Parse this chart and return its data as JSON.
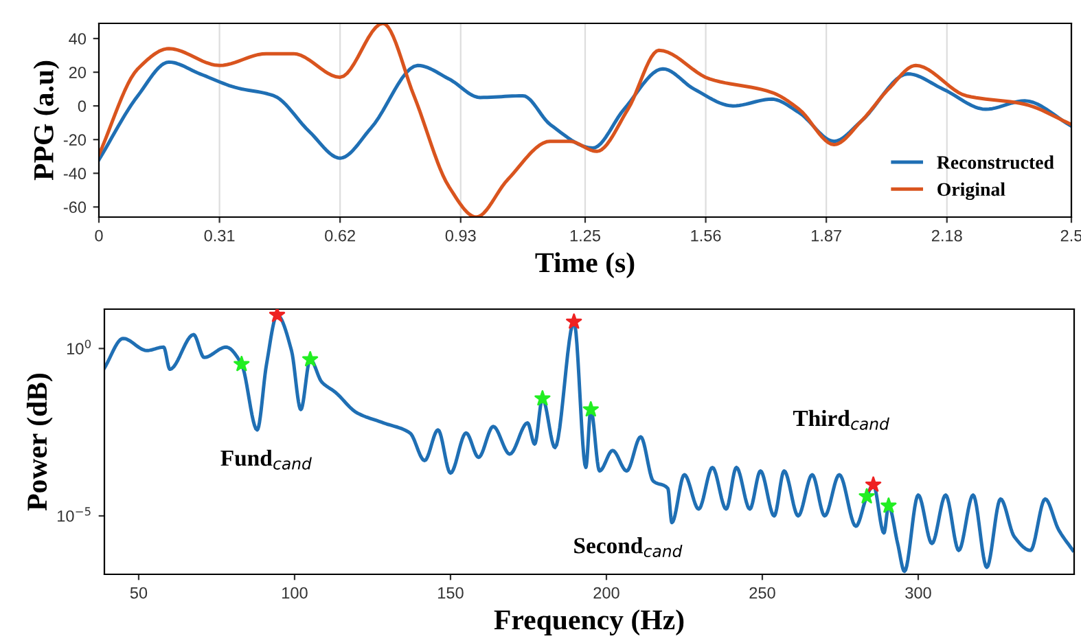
{
  "chart_data": [
    {
      "type": "line",
      "xlabel": "Time (s)",
      "ylabel": "PPG (a.u)",
      "xlim": [
        0,
        2.5
      ],
      "ylim": [
        -66,
        49
      ],
      "xticks": [
        0,
        0.31,
        0.62,
        0.93,
        1.25,
        1.56,
        1.87,
        2.18,
        2.5
      ],
      "yticks": [
        -60,
        -40,
        -20,
        0,
        20,
        40
      ],
      "grid": "x",
      "legend": "bottom right",
      "x": [
        0,
        0.1,
        0.18,
        0.26,
        0.35,
        0.45,
        0.54,
        0.62,
        0.7,
        0.82,
        0.9,
        0.98,
        1.09,
        1.16,
        1.27,
        1.35,
        1.45,
        1.53,
        1.63,
        1.73,
        1.8,
        1.89,
        1.96,
        2.08,
        2.17,
        2.28,
        2.38,
        2.5
      ],
      "series": [
        {
          "name": "Reconstructed",
          "color": "#1f6fb4",
          "values": [
            -32,
            6,
            26,
            19,
            11,
            6,
            -15,
            -31,
            -13,
            24,
            16,
            5,
            6,
            -11,
            -25,
            -2,
            22,
            10,
            0,
            4,
            -4,
            -21,
            -9,
            19,
            10,
            -2,
            3,
            -12
          ]
        },
        {
          "name": "Original",
          "color": "#d9541e",
          "x": [
            0,
            0.1,
            0.18,
            0.31,
            0.43,
            0.5,
            0.62,
            0.73,
            0.81,
            0.9,
            0.97,
            1.05,
            1.16,
            1.21,
            1.28,
            1.36,
            1.44,
            1.57,
            1.73,
            1.8,
            1.89,
            1.96,
            2.03,
            2.1,
            2.23,
            2.38,
            2.5
          ],
          "values": [
            -29,
            22,
            34,
            24,
            31,
            31,
            17,
            49,
            6,
            -48,
            -66,
            -44,
            -21,
            -21,
            -27,
            -2,
            33,
            16,
            8,
            -2,
            -23,
            -9,
            10,
            24,
            6,
            1,
            -11
          ]
        }
      ]
    },
    {
      "type": "line",
      "xlabel": "Frequency (Hz)",
      "ylabel": "Power (dB)",
      "log": "y",
      "xlim": [
        39,
        350
      ],
      "ylim": [
        1.8e-07,
        15
      ],
      "xticks": [
        50,
        100,
        150,
        200,
        250,
        300
      ],
      "yticks": [
        {
          "value": 1,
          "label": "10$^{0}$"
        },
        {
          "value": 1e-05,
          "label": "10$^{−5}$"
        }
      ],
      "grid": false,
      "legend": false,
      "annotations": [
        "Fund$_{cand}$",
        "Second$_{cand}$",
        "Third$_{cand}$"
      ],
      "series": [
        {
          "type": "line",
          "color": "#1f6fb4",
          "x": [
            39,
            45,
            52.6,
            58,
            60,
            67.6,
            71,
            78,
            83,
            88,
            91,
            94.4,
            99,
            102,
            105,
            108.7,
            113,
            120,
            128.5,
            137,
            141.7,
            146,
            150,
            155,
            159,
            163.7,
            169,
            174.7,
            177,
            179.5,
            183.5,
            189.6,
            193.4,
            195,
            197.8,
            202,
            206.5,
            211,
            215,
            219.7,
            221,
            225,
            229.6,
            234,
            238.4,
            241.7,
            246,
            249.4,
            253.8,
            257,
            261.5,
            266,
            270,
            274.7,
            280,
            283.5,
            285.6,
            289,
            290.5,
            293.4,
            295.6,
            300,
            304.4,
            308.8,
            313,
            317.6,
            322,
            326.4,
            330.8,
            336,
            340.7,
            345,
            349.6
          ],
          "values": [
            0.26,
            2.0,
            0.87,
            1.1,
            0.24,
            2.6,
            0.54,
            1.1,
            0.34,
            0.0037,
            0.34,
            10,
            0.87,
            0.015,
            0.47,
            0.1,
            0.05,
            0.012,
            0.006,
            0.003,
            0.00045,
            0.0037,
            0.00019,
            0.003,
            0.00056,
            0.0047,
            0.0007,
            0.006,
            0.0014,
            0.032,
            0.0011,
            6.3,
            0.00028,
            0.015,
            0.00022,
            0.0009,
            0.00022,
            0.0023,
            0.00011,
            6.6e-05,
            6.3e-06,
            0.00017,
            1.6e-05,
            0.00028,
            1.6e-05,
            0.00028,
            1.6e-05,
            0.00022,
            1e-05,
            0.00022,
            1e-05,
            0.00017,
            1e-05,
            0.00017,
            4.9e-06,
            3.8e-05,
            8.5e-05,
            3.1e-06,
            2e-05,
            1.5e-06,
            2.2e-07,
            4.2e-05,
            1.5e-06,
            4.2e-05,
            9.3e-07,
            4.2e-05,
            2.9e-07,
            3.2e-05,
            2.4e-06,
            9.3e-07,
            3.2e-05,
            3.9e-06,
            9.3e-07
          ]
        },
        {
          "type": "scatter",
          "marker": "star",
          "color": "#22ee22",
          "x": [
            83,
            105,
            179.5,
            195,
            283.5,
            290.5
          ],
          "values": [
            0.34,
            0.47,
            0.032,
            0.015,
            3.8e-05,
            2e-05
          ]
        },
        {
          "type": "scatter",
          "marker": "star",
          "color": "#ee2222",
          "x": [
            94.4,
            189.6,
            285.6
          ],
          "values": [
            10,
            6.3,
            8.5e-05
          ]
        }
      ]
    }
  ]
}
